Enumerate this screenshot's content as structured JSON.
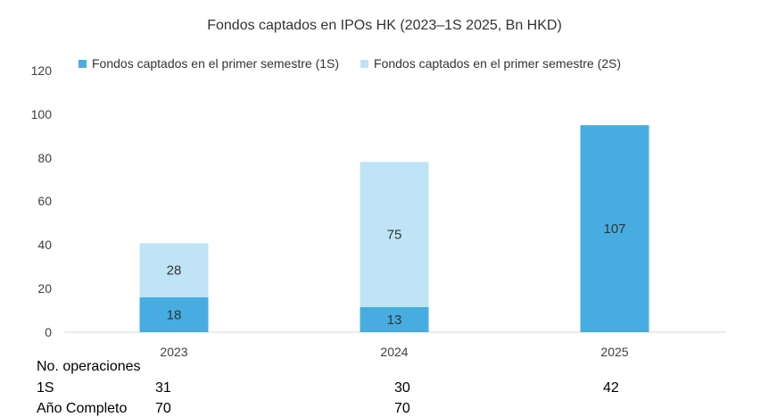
{
  "chart_data": {
    "type": "bar",
    "stacked": true,
    "title": "Fondos captados en IPOs HK (2023–1S 2025, Bn HKD)",
    "categories": [
      "2023",
      "2024",
      "2025"
    ],
    "series": [
      {
        "name": "Fondos captados en el primer semestre (1S)",
        "values": [
          18,
          13,
          107
        ],
        "color": "#47ADE0"
      },
      {
        "name": "Fondos captados en el primer semestre (2S)",
        "values": [
          28,
          75,
          null
        ],
        "color": "#BEE4F6"
      }
    ],
    "yticks": [
      "0",
      "20",
      "40",
      "60",
      "80",
      "100",
      "120"
    ],
    "ylim": [
      0,
      120
    ],
    "grid": false,
    "legend": "top"
  },
  "ops_table": {
    "header": "No. operaciones",
    "rows": [
      {
        "label": "1S",
        "values": [
          "31",
          "30",
          "42"
        ]
      },
      {
        "label": "Año Completo",
        "values": [
          "70",
          "70",
          ""
        ]
      }
    ]
  }
}
